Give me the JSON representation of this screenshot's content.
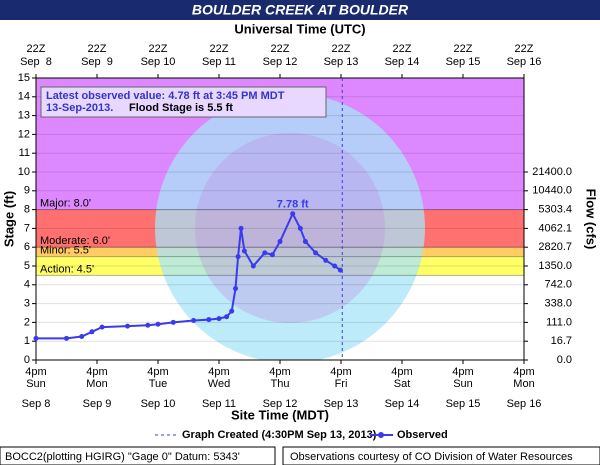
{
  "chart_data": {
    "type": "line",
    "title": "BOULDER CREEK AT BOULDER",
    "top_axis_title": "Universal Time (UTC)",
    "top_tick_labels": [
      "22Z",
      "22Z",
      "22Z",
      "22Z",
      "22Z",
      "22Z",
      "22Z",
      "22Z",
      "22Z"
    ],
    "top_tick_dates": [
      "Sep  8",
      "Sep  9",
      "Sep 10",
      "Sep 11",
      "Sep 12",
      "Sep 13",
      "Sep 14",
      "Sep 15",
      "Sep 16"
    ],
    "xlabel": "Site Time (MDT)",
    "ylabel": "Stage (ft)",
    "y2label": "Flow (cfs)",
    "xlim": [
      "Sep 8 16:00",
      "Sep 16 16:00"
    ],
    "xticks": [
      {
        "value": "Sep 8 16:00",
        "label": "4pm"
      },
      {
        "value": "Sep 9 16:00",
        "label": "4pm"
      },
      {
        "value": "Sep 10 16:00",
        "label": "4pm"
      },
      {
        "value": "Sep 11 16:00",
        "label": "4pm"
      },
      {
        "value": "Sep 12 16:00",
        "label": "4pm"
      },
      {
        "value": "Sep 13 16:00",
        "label": "4pm"
      },
      {
        "value": "Sep 14 16:00",
        "label": "4pm"
      },
      {
        "value": "Sep 15 16:00",
        "label": "4pm"
      },
      {
        "value": "Sep 16 16:00",
        "label": "4pm"
      }
    ],
    "x_tick_days": [
      "Sun",
      "Mon",
      "Tue",
      "Wed",
      "Thu",
      "Fri",
      "Sat",
      "Sun",
      "Mon"
    ],
    "x_tick_dates": [
      "Sep 8",
      "Sep 9",
      "Sep 10",
      "Sep 11",
      "Sep 12",
      "Sep 13",
      "Sep 14",
      "Sep 15",
      "Sep 16"
    ],
    "ylim": [
      0,
      15
    ],
    "yticks": [
      0,
      1,
      2,
      3,
      4,
      5,
      6,
      7,
      8,
      9,
      10,
      11,
      12,
      13,
      14,
      15
    ],
    "y2ticks": [
      {
        "value": 0,
        "label": "0.0"
      },
      {
        "value": 16.7,
        "label": "16.7"
      },
      {
        "value": 111,
        "label": "111.0"
      },
      {
        "value": 338,
        "label": "338.0"
      },
      {
        "value": 742,
        "label": "742.0"
      },
      {
        "value": 1350,
        "label": "1350.0"
      },
      {
        "value": 2820.7,
        "label": "2820.7"
      },
      {
        "value": 4062.1,
        "label": "4062.1"
      },
      {
        "value": 5303.4,
        "label": "5303.4"
      },
      {
        "value": 10440,
        "label": "10440.0"
      },
      {
        "value": 21400,
        "label": "21400.0"
      }
    ],
    "grid": true,
    "flood_stages": [
      {
        "label": "Action: 4.5'",
        "value": 4.5,
        "color": "#ffff66"
      },
      {
        "label": "Minor: 5.5'",
        "value": 5.5,
        "color": "#ffcc66"
      },
      {
        "label": "Moderate: 6.0'",
        "value": 6.0,
        "color": "#ff7070"
      },
      {
        "label": "Major: 8.0'",
        "value": 8.0,
        "color": "#dd88ff"
      }
    ],
    "series": [
      {
        "name": "Observed",
        "color": "#3a3aee",
        "x": [
          "Sep 8 16:00",
          "Sep 9 04:00",
          "Sep 9 10:00",
          "Sep 9 14:00",
          "Sep 9 18:00",
          "Sep 10 04:00",
          "Sep 10 12:00",
          "Sep 10 16:00",
          "Sep 10 22:00",
          "Sep 11 06:00",
          "Sep 11 12:00",
          "Sep 11 16:00",
          "Sep 11 19:00",
          "Sep 11 21:00",
          "Sep 11 22:30",
          "Sep 11 23:30",
          "Sep 12 00:40",
          "Sep 12 02:00",
          "Sep 12 05:30",
          "Sep 12 10:00",
          "Sep 12 13:00",
          "Sep 12 16:00",
          "Sep 12 21:00",
          "Sep 13 00:00",
          "Sep 13 02:00",
          "Sep 13 06:00",
          "Sep 13 10:00",
          "Sep 13 13:30",
          "Sep 13 15:45"
        ],
        "values": [
          1.15,
          1.15,
          1.25,
          1.5,
          1.75,
          1.8,
          1.85,
          1.9,
          2.0,
          2.1,
          2.15,
          2.2,
          2.3,
          2.6,
          3.8,
          5.5,
          7.0,
          5.8,
          5.0,
          5.7,
          5.6,
          6.3,
          7.78,
          7.0,
          6.3,
          5.7,
          5.3,
          5.0,
          4.78
        ]
      }
    ],
    "peak": {
      "x": "Sep 12 21:00",
      "value": 7.78,
      "label": "7.78 ft"
    },
    "latest_line1": "Latest observed value: 4.78 ft at 3:45 PM MDT",
    "latest_line2": "13-Sep-2013.",
    "flood_stage_text": "Flood Stage is 5.5 ft",
    "graph_created": {
      "x": "Sep 13 16:30",
      "label": "Graph Created (4:30PM Sep 13, 2013)"
    },
    "footer_left": "BOCC2(plotting HGIRG) \"Gage 0\" Datum: 5343'",
    "footer_right": "Observations courtesy of CO Division of Water Resources"
  }
}
